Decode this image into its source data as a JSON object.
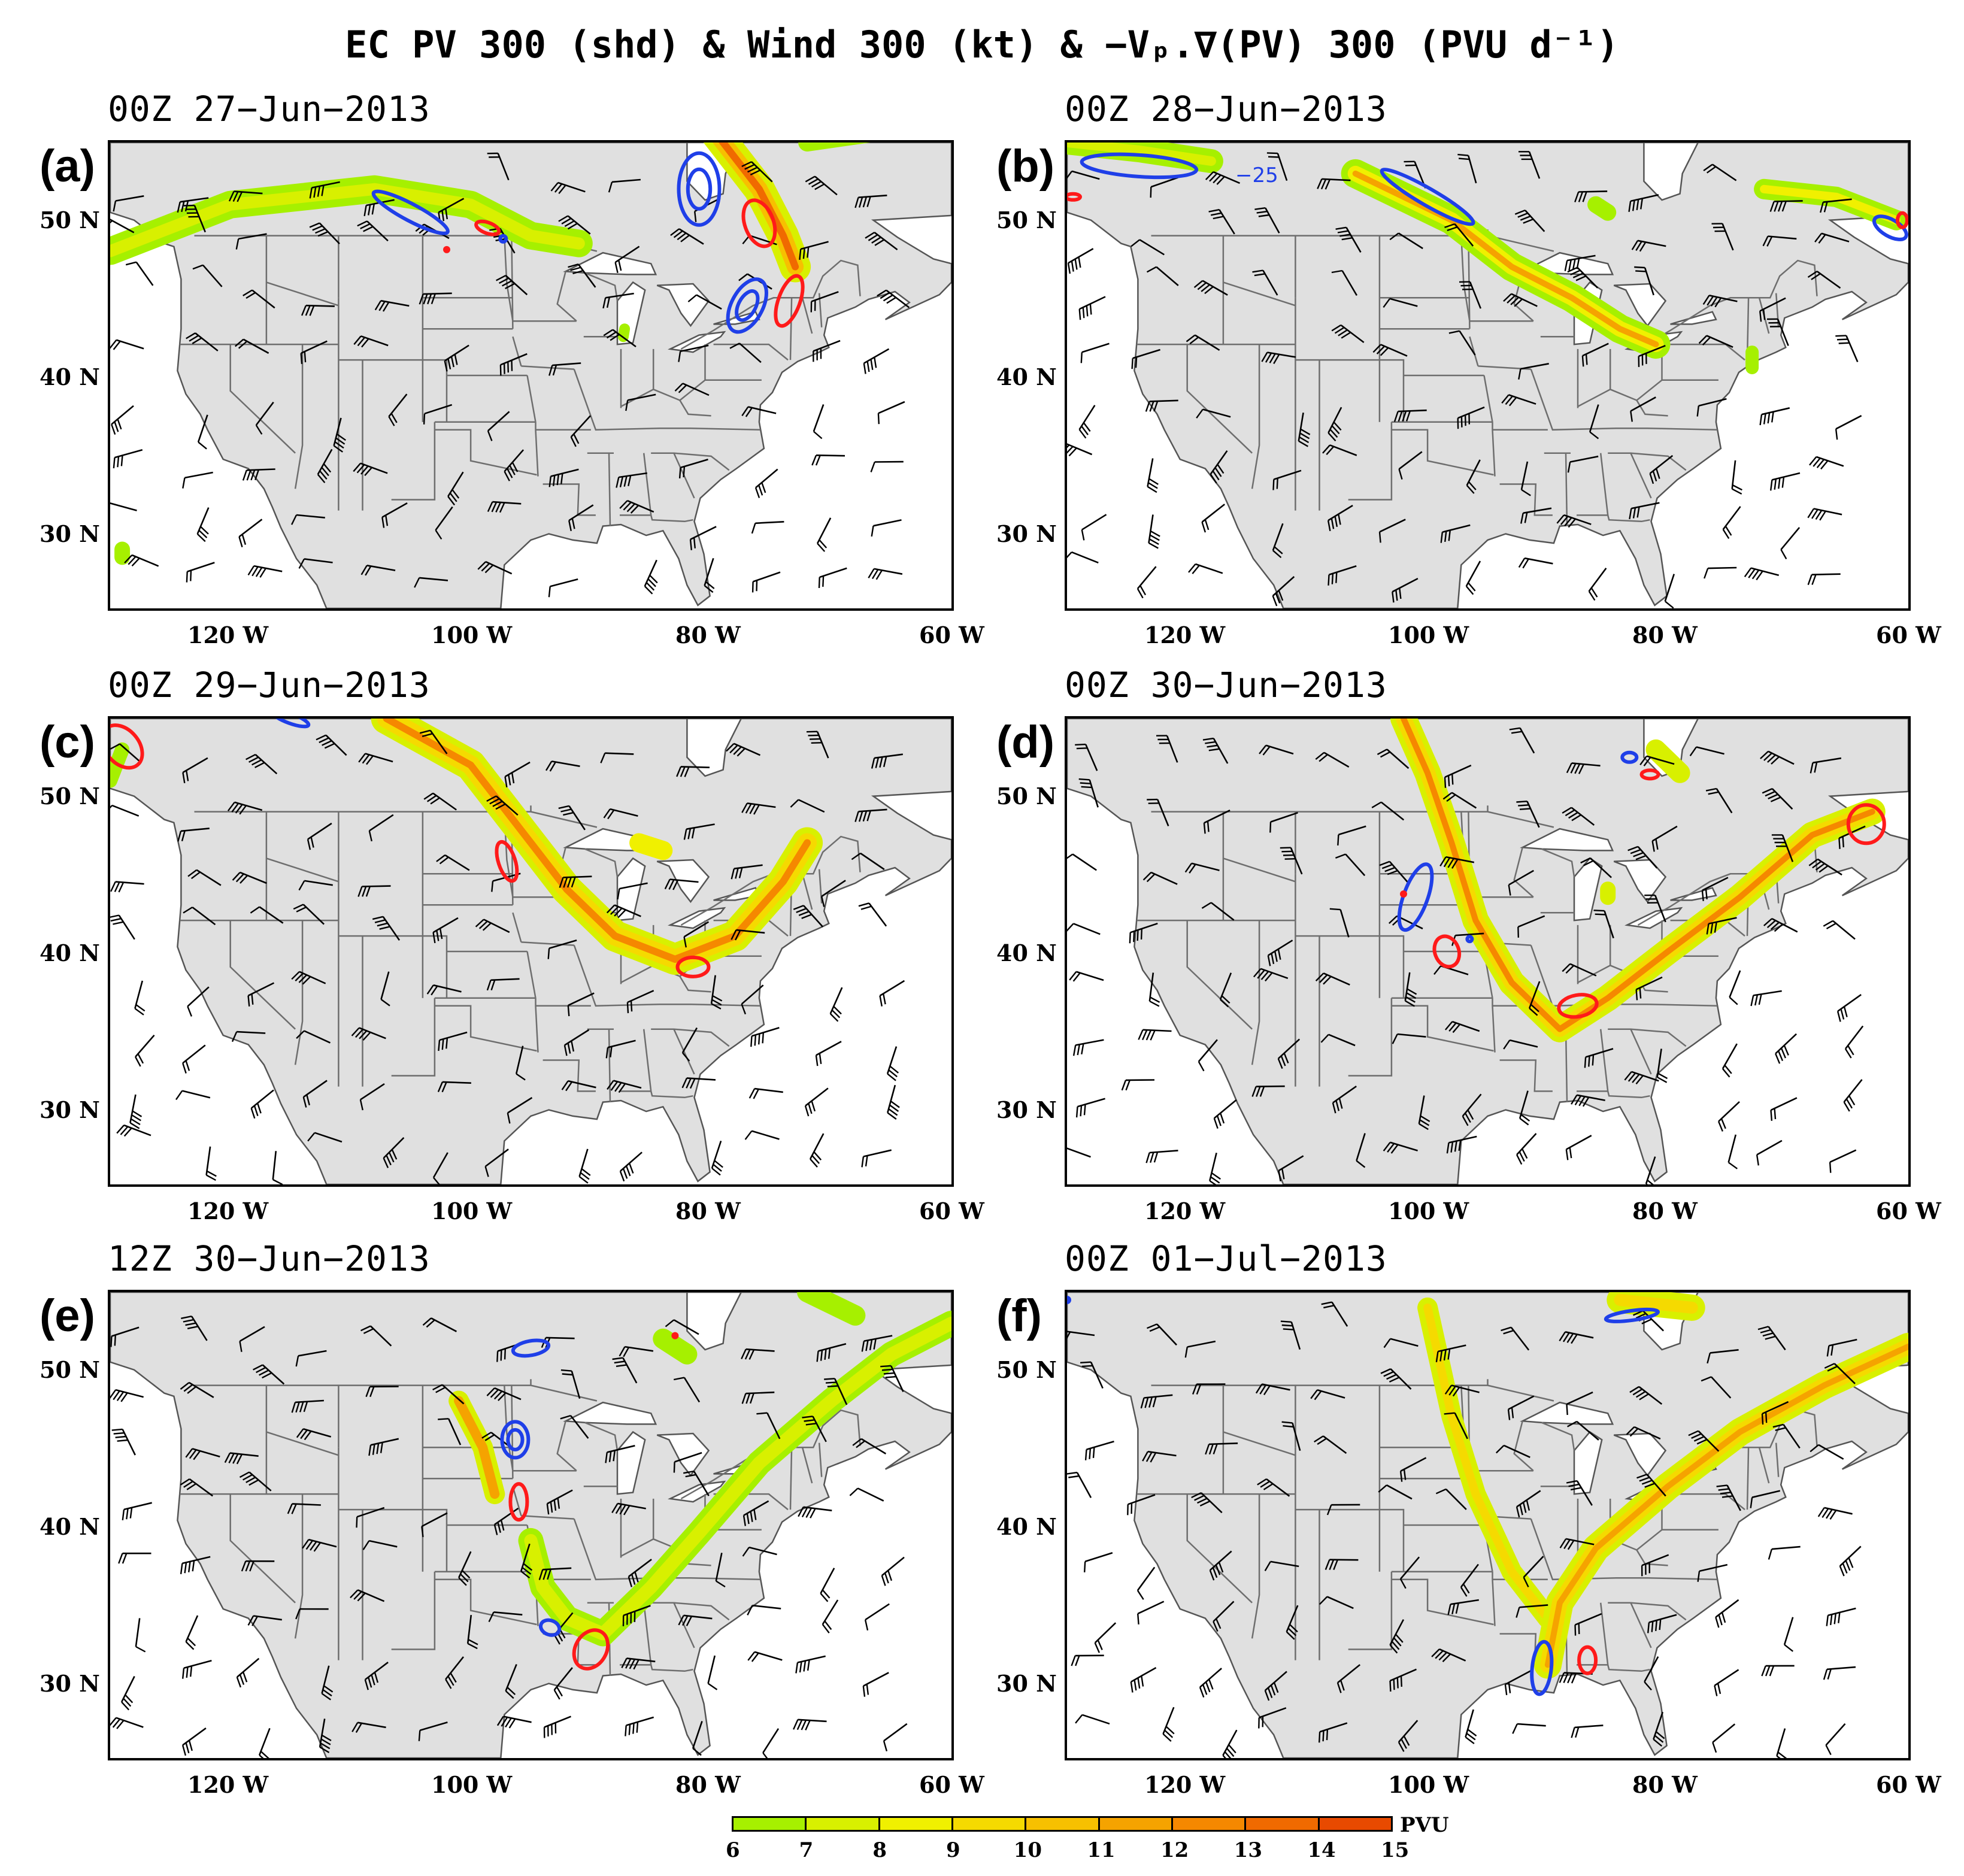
{
  "figure": {
    "title": "EC PV 300 (shd) & Wind 300 (kt) & −Vₚ.∇(PV) 300 (PVU d⁻¹)"
  },
  "panels": [
    {
      "id": "a",
      "letter": "(a)",
      "time": "00Z 27−Jun−2013",
      "contour_label": ""
    },
    {
      "id": "b",
      "letter": "(b)",
      "time": "00Z 28−Jun−2013",
      "contour_label": "−25"
    },
    {
      "id": "c",
      "letter": "(c)",
      "time": "00Z 29−Jun−2013",
      "contour_label": ""
    },
    {
      "id": "d",
      "letter": "(d)",
      "time": "00Z 30−Jun−2013",
      "contour_label": ""
    },
    {
      "id": "e",
      "letter": "(e)",
      "time": "12Z 30−Jun−2013",
      "contour_label": ""
    },
    {
      "id": "f",
      "letter": "(f)",
      "time": "00Z 01−Jul−2013",
      "contour_label": ""
    }
  ],
  "axes": {
    "lat_labels": [
      "50 N",
      "40 N",
      "30 N"
    ],
    "lon_labels": [
      "120 W",
      "100 W",
      "80 W",
      "60 W"
    ]
  },
  "colorbar": {
    "unit": "PVU",
    "ticks": [
      "6",
      "7",
      "8",
      "9",
      "10",
      "11",
      "12",
      "13",
      "14",
      "15"
    ],
    "colors": [
      "#a6f000",
      "#d8f000",
      "#f0f000",
      "#f5da00",
      "#f7c000",
      "#f5a300",
      "#f58800",
      "#f06a00",
      "#e84a00"
    ]
  },
  "colors": {
    "land": "#e0e0e0",
    "borders": "#6e6e6e",
    "coast": "#555555",
    "positive_contour": "#ff1a1a",
    "negative_contour": "#1f3fe8",
    "wind_barb": "#000000"
  }
}
